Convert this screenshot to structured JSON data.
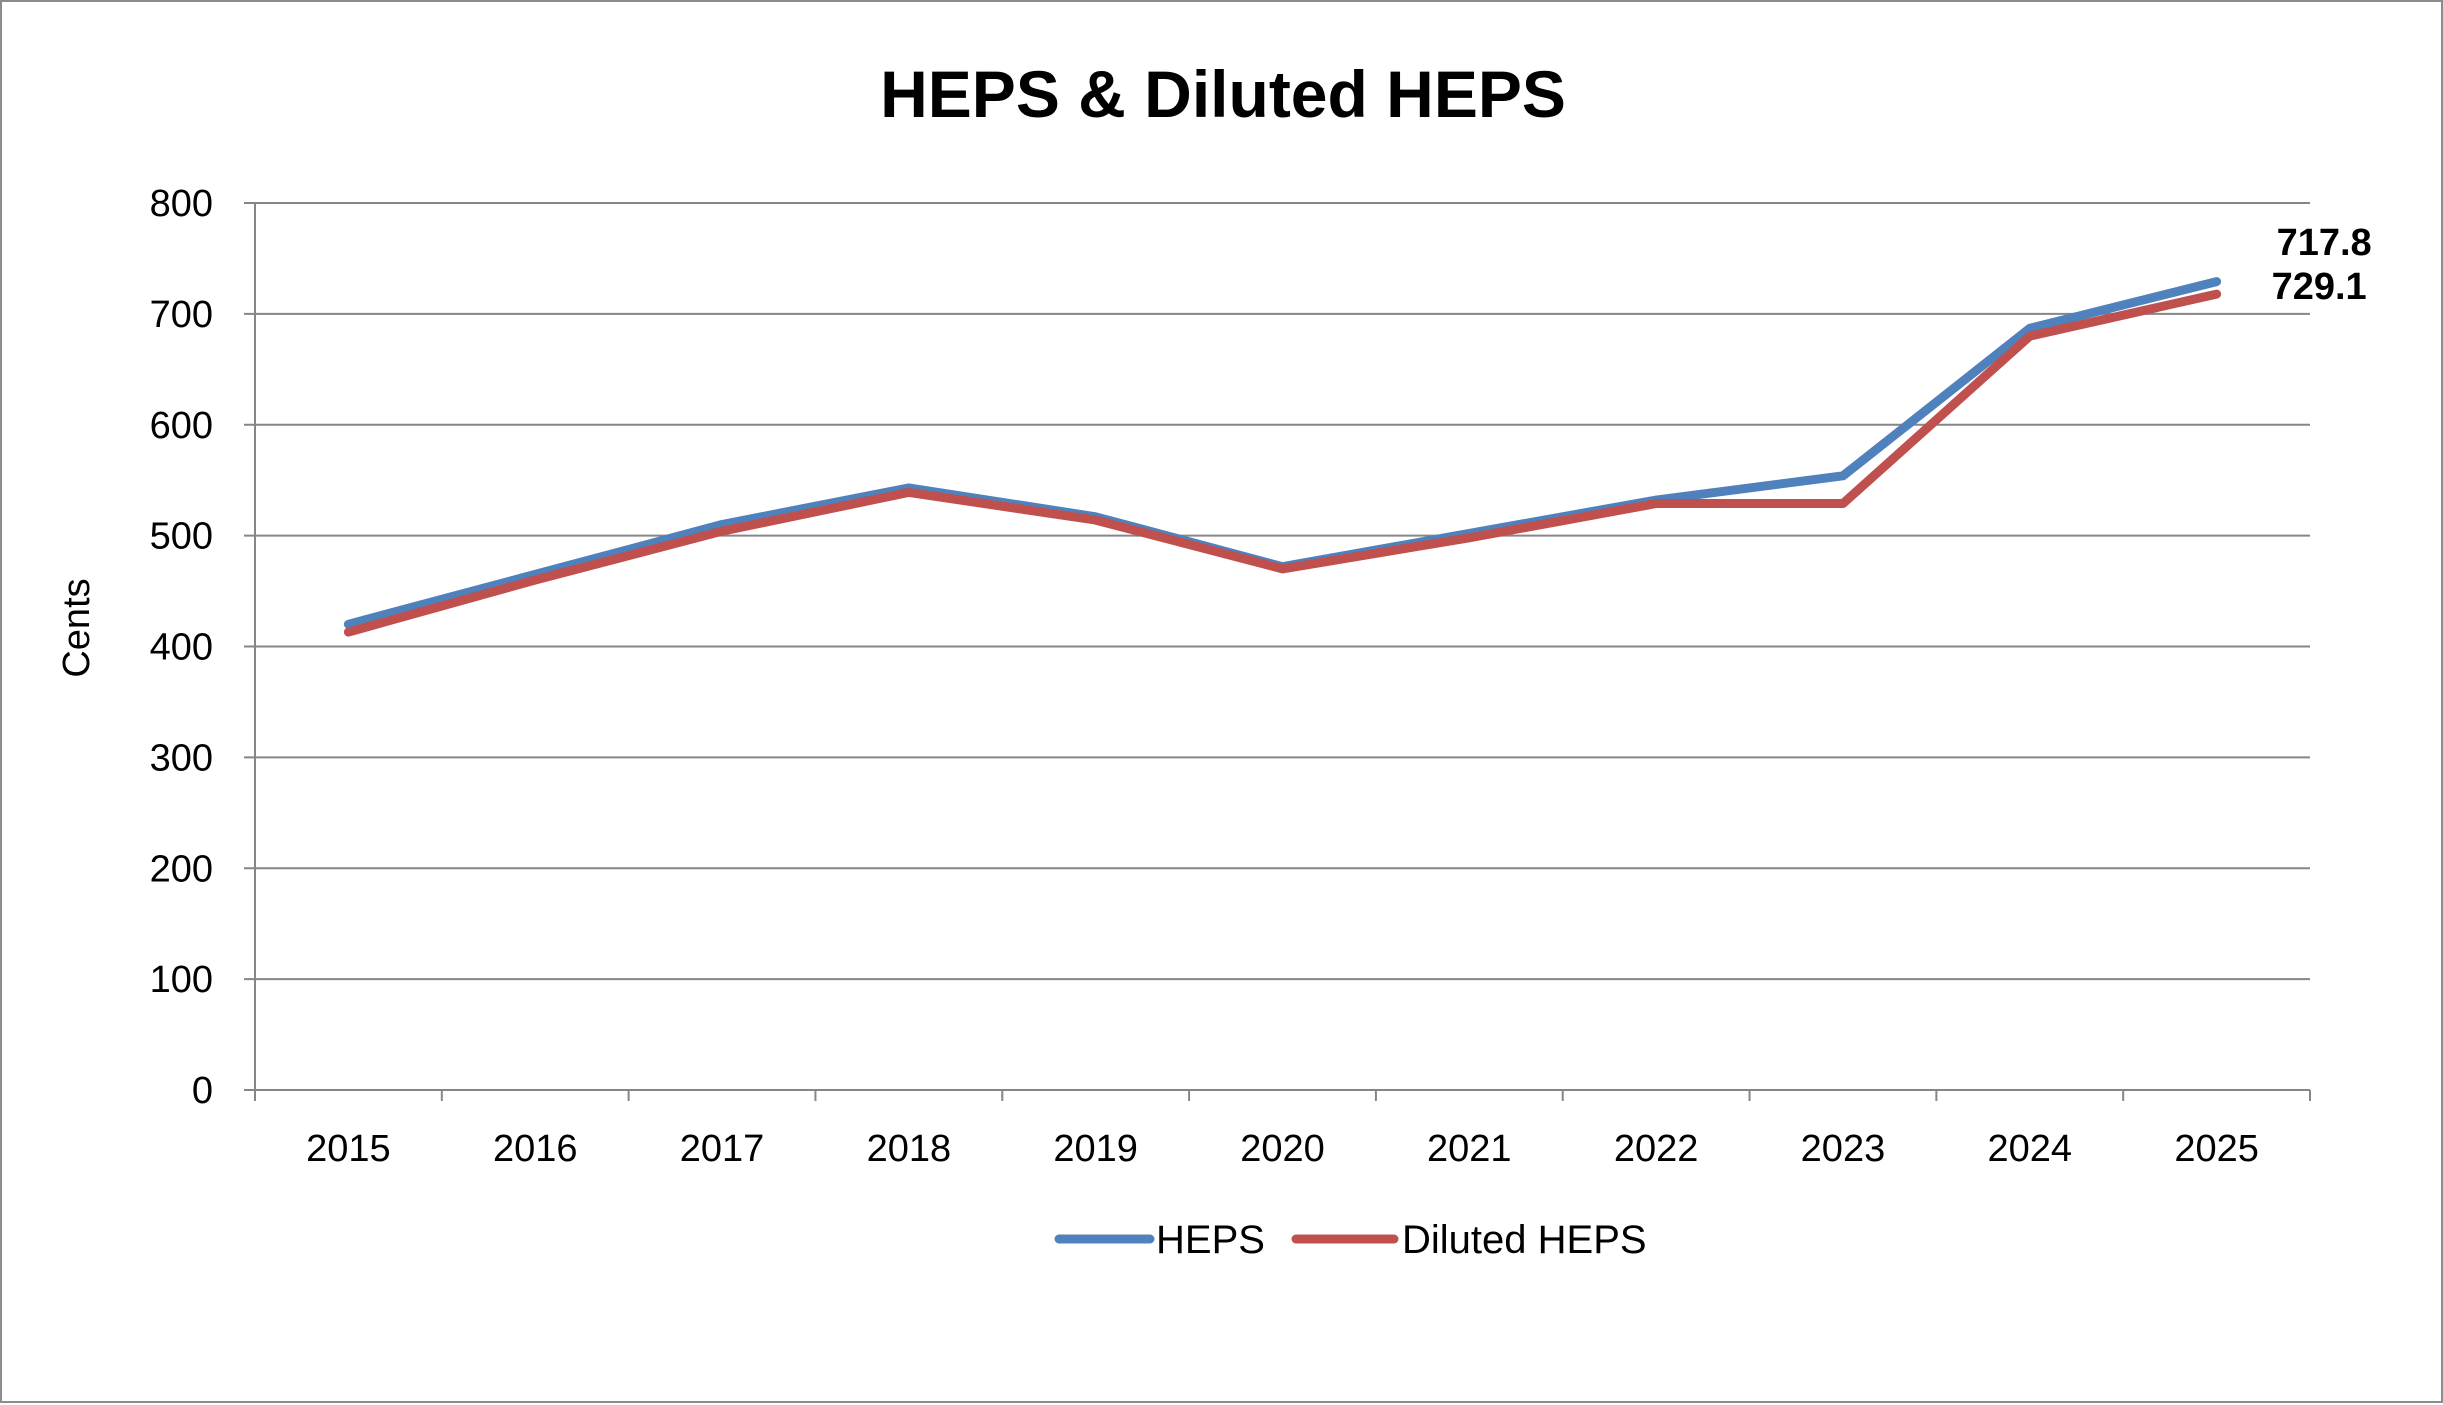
{
  "chart_data": {
    "type": "line",
    "title": "HEPS & Diluted HEPS",
    "xlabel": "",
    "ylabel": "Cents",
    "ylim": [
      0,
      800
    ],
    "yticks": [
      "0",
      "100",
      "200",
      "300",
      "400",
      "500",
      "600",
      "700",
      "800"
    ],
    "categories": [
      "2015",
      "2016",
      "2017",
      "2018",
      "2019",
      "2020",
      "2021",
      "2022",
      "2023",
      "2024",
      "2025"
    ],
    "grid": true,
    "legend_position": "bottom",
    "series": [
      {
        "name": "HEPS",
        "color": "#4F81BD",
        "values": [
          420,
          465,
          510,
          543,
          517,
          472,
          502,
          532,
          554,
          687,
          729.1
        ]
      },
      {
        "name": "Diluted HEPS",
        "color": "#C0504D",
        "values": [
          413,
          460,
          504,
          539,
          514,
          470,
          498,
          529,
          529,
          680,
          717.8
        ]
      }
    ],
    "annotations": [
      {
        "text": "717.8",
        "series": "Diluted HEPS",
        "category": "2025"
      },
      {
        "text": "729.1",
        "series": "HEPS",
        "category": "2025"
      }
    ]
  }
}
